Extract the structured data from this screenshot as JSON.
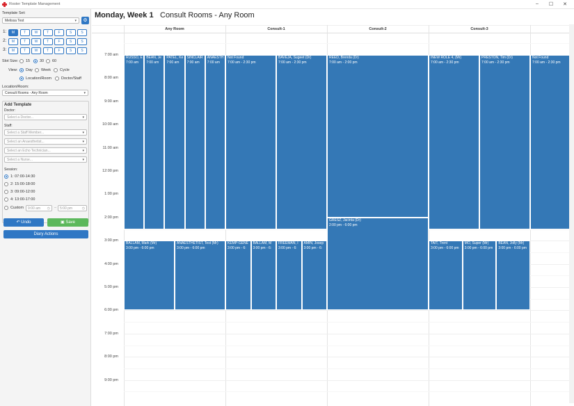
{
  "window": {
    "title": "Roster Template Management",
    "minimize": "–",
    "maximize": "☐",
    "close": "✕"
  },
  "sidebar": {
    "template_set_label": "Template Set:",
    "template_set_value": "Melissa Test",
    "week_rows": [
      {
        "label": "1:",
        "days": [
          "M",
          "T",
          "W",
          "T",
          "F",
          "S",
          "S"
        ]
      },
      {
        "label": "2:",
        "days": [
          "M",
          "T",
          "W",
          "T",
          "F",
          "S",
          "S"
        ]
      },
      {
        "label": "3:",
        "days": [
          "M",
          "T",
          "W",
          "T",
          "F",
          "S",
          "S"
        ]
      }
    ],
    "slot_size_label": "Slot Size:",
    "slot_options": [
      "15",
      "30",
      "60"
    ],
    "view_label": "View:",
    "view_options": [
      "Day",
      "Week",
      "Cycle"
    ],
    "group_options": [
      "Location/Room",
      "Doctor/Staff"
    ],
    "location_label": "Location/Room:",
    "location_value": "Consult Rooms - Any Room",
    "add_template": {
      "title": "Add Template",
      "doctor_label": "Doctor:",
      "doctor_placeholder": "Select a Doctor...",
      "staff_label": "Staff:",
      "staff_placeholders": [
        "Select a Staff Member...",
        "Select an Anaesthetist...",
        "Select an Echo Technician...",
        "Select a Nurse..."
      ],
      "session_label": "Session:",
      "sessions": [
        "1: 07:00-14:30",
        "2: 15:00-18:00",
        "3: 09:00-12:00",
        "4: 13:00-17:00"
      ],
      "custom_label": "Custom",
      "custom_from": "9:00 am",
      "custom_to": "5:00 pm",
      "custom_sep": "–"
    },
    "undo_label": "Undo",
    "save_label": "Save",
    "diary_label": "Diary Actions"
  },
  "calendar": {
    "title": "Monday, Week 1",
    "subtitle": "Consult Rooms - Any Room",
    "columns": [
      "Any Room",
      "Consult-1",
      "Consult-2",
      "Consult-3"
    ],
    "times": [
      "7:00 am",
      "8:00 am",
      "9:00 am",
      "10:00 am",
      "11:00 am",
      "12:00 pm",
      "1:00 pm",
      "2:00 pm",
      "3:00 pm",
      "4:00 pm",
      "5:00 pm",
      "6:00 pm",
      "7:00 pm",
      "8:00 pm",
      "9:00 pm"
    ],
    "events": [
      {
        "name": "RUSSO, E",
        "time": "7:00 am",
        "col": 0,
        "lane": 0,
        "lanes": 5,
        "start": 7,
        "end": 14.5
      },
      {
        "name": "BEAN, Je",
        "time": "7:00 am",
        "col": 0,
        "lane": 1,
        "lanes": 5,
        "start": 7,
        "end": 14.5
      },
      {
        "name": "PATEL, Ke",
        "time": "7:00 am",
        "col": 0,
        "lane": 2,
        "lanes": 5,
        "start": 7,
        "end": 14.5
      },
      {
        "name": "SINCLAIR",
        "time": "7:00 am",
        "col": 0,
        "lane": 3,
        "lanes": 5,
        "start": 7,
        "end": 14.5
      },
      {
        "name": "ANAESTH",
        "time": "7:00 am",
        "col": 0,
        "lane": 4,
        "lanes": 5,
        "start": 7,
        "end": 14.5
      },
      {
        "name": "BALLAM, Mark (Mr)",
        "time": "3:00 pm - 6:00 pm",
        "col": 0,
        "lane": 0,
        "lanes": 2,
        "start": 15,
        "end": 18
      },
      {
        "name": "ANAESTHETIST, Test (Mr)",
        "time": "3:00 pm - 6:00 pm",
        "col": 0,
        "lane": 1,
        "lanes": 2,
        "start": 15,
        "end": 18
      },
      {
        "name": "Not Found",
        "time": "7:00 am - 2:30 pm",
        "col": 1,
        "lane": 0,
        "lanes": 2,
        "start": 7,
        "end": 14.5
      },
      {
        "name": "BAVEJA, Sugeet (Dr)",
        "time": "7:00 am - 2:30 pm",
        "col": 1,
        "lane": 1,
        "lanes": 2,
        "start": 7,
        "end": 14.5
      },
      {
        "name": "KEMP-GENE",
        "time": "3:00 pm - 6:",
        "col": 1,
        "lane": 0,
        "lanes": 4,
        "start": 15,
        "end": 18
      },
      {
        "name": "BALLAM, M",
        "time": "3:00 pm - 6:",
        "col": 1,
        "lane": 1,
        "lanes": 4,
        "start": 15,
        "end": 18
      },
      {
        "name": "FREEMAN, I",
        "time": "3:00 pm - 6:",
        "col": 1,
        "lane": 2,
        "lanes": 4,
        "start": 15,
        "end": 18
      },
      {
        "name": "AMIN, Josep",
        "time": "3:00 pm - 6:",
        "col": 1,
        "lane": 3,
        "lanes": 4,
        "start": 15,
        "end": 18
      },
      {
        "name": "REED, Brenda (Dr)",
        "time": "7:00 am - 2:00 pm",
        "col": 2,
        "lane": 0,
        "lanes": 1,
        "start": 7,
        "end": 14
      },
      {
        "name": "GRESZ, Jacinta (Dr)",
        "time": "2:00 pm - 6:00 pm",
        "col": 2,
        "lane": 0,
        "lanes": 1,
        "start": 14,
        "end": 18
      },
      {
        "name": "INEW ROLE 4, (Mr)",
        "time": "7:00 am - 2:30 pm",
        "col": 3,
        "lane": 0,
        "lanes": 2,
        "start": 7,
        "end": 14.5
      },
      {
        "name": "PRESTON, Tim (Dr)",
        "time": "7:00 am - 2:30 pm",
        "col": 3,
        "lane": 1,
        "lanes": 2,
        "start": 7,
        "end": 14.5
      },
      {
        "name": "TAIT, Trent",
        "time": "3:00 pm - 6:00 pm",
        "col": 3,
        "lane": 0,
        "lanes": 3,
        "start": 15,
        "end": 18
      },
      {
        "name": "MO, Super (Mr)",
        "time": "3:00 pm - 6:00 pm",
        "col": 3,
        "lane": 1,
        "lanes": 3,
        "start": 15,
        "end": 18
      },
      {
        "name": "BEAN, Jolly (Mr)",
        "time": "3:00 pm - 6:00 pm",
        "col": 3,
        "lane": 2,
        "lanes": 3,
        "start": 15,
        "end": 18
      },
      {
        "name": "Not Found",
        "time": "7:00 am - 2:30 pm",
        "col": 4,
        "lane": 0,
        "lanes": 1,
        "start": 7,
        "end": 14.5
      }
    ]
  },
  "colors": {
    "accent": "#2f77c4",
    "event": "#3478b6",
    "save": "#5cb85c"
  }
}
